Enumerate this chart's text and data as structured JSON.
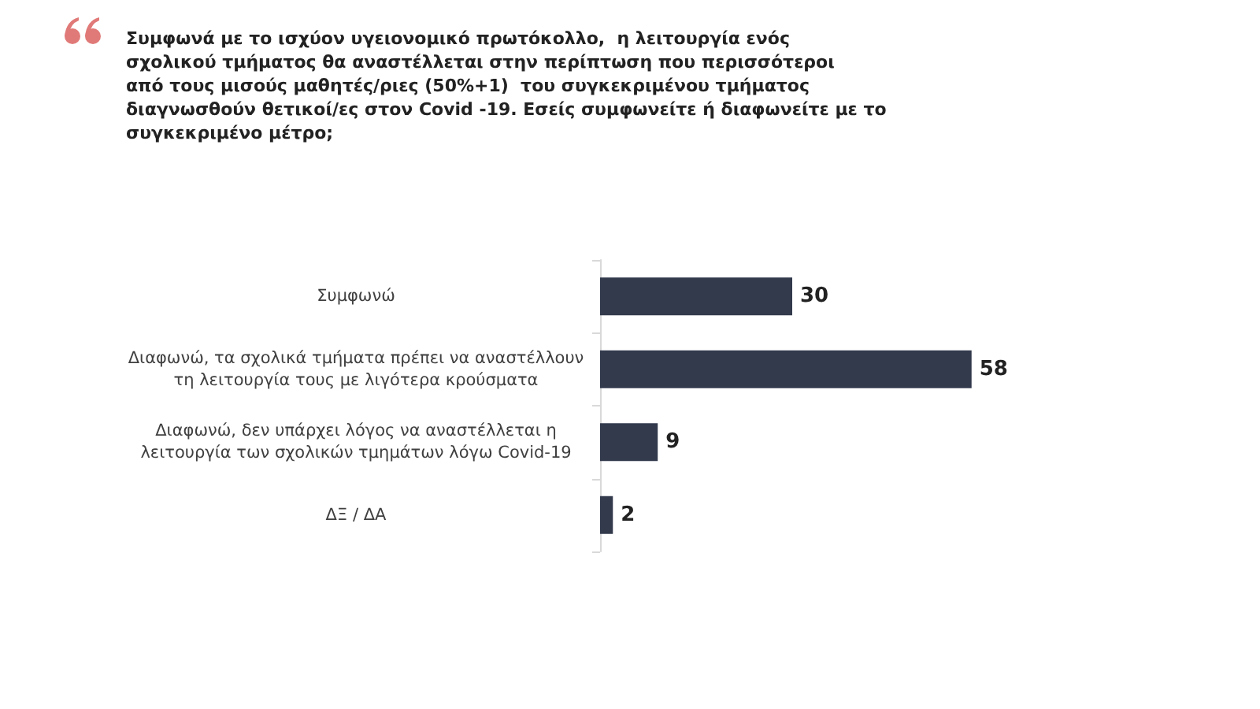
{
  "chart_data": {
    "type": "bar",
    "orientation": "horizontal",
    "title": "Συμφωνά με το ισχύον υγειονομικό πρωτόκολλο,  η λειτουργία ενός σχολικού τμήματος θα αναστέλλεται στην περίπτωση που περισσότεροι  από τους μισούς μαθητές/ριες (50%+1)  του συγκεκριμένου τμήματος διαγνωσθούν θετικοί/ες στον Covid -19. Εσείς συμφωνείτε ή διαφωνείτε με το συγκεκριμένο μέτρο;",
    "categories": [
      "Συμφωνώ",
      "Διαφωνώ, τα σχολικά τμήματα πρέπει να αναστέλλουν\nτη λειτουργία τους με λιγότερα κρούσματα",
      "Διαφωνώ, δεν υπάρχει λόγος να αναστέλλεται η\nλειτουργία των σχολικών τμημάτων λόγω Covid-19",
      "ΔΞ / ΔΑ"
    ],
    "values": [
      30,
      58,
      9,
      2
    ],
    "color": "#323a4c",
    "data_labels": true
  }
}
